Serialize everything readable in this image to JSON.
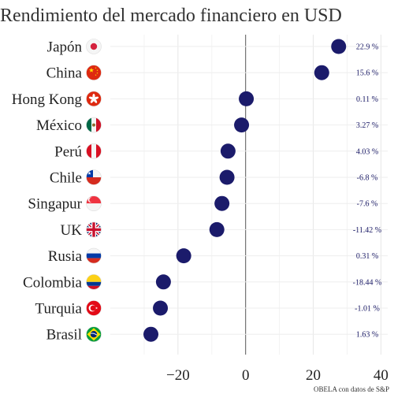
{
  "chart_data": {
    "type": "scatter",
    "title": "Rendimiento del mercado financiero en USD",
    "caption": "OBELA con datos de S&P",
    "xlabel": "",
    "ylabel": "",
    "xlim": [
      -40,
      42
    ],
    "x_ticks": [
      -20,
      0,
      20,
      40
    ],
    "x_tick_labels": [
      "−20",
      "0",
      "20",
      "40"
    ],
    "grid": true,
    "legend": "none",
    "point_color": "#1b1b6b",
    "categories": [
      "Japón",
      "China",
      "Hong Kong",
      "México",
      "Perú",
      "Chile",
      "Singapur",
      "UK",
      "Rusia",
      "Colombia",
      "Turquia",
      "Brasil"
    ],
    "flags": [
      "japan-flag-icon",
      "china-flag-icon",
      "hong-kong-flag-icon",
      "mexico-flag-icon",
      "peru-flag-icon",
      "chile-flag-icon",
      "singapore-flag-icon",
      "uk-flag-icon",
      "russia-flag-icon",
      "colombia-flag-icon",
      "turkey-flag-icon",
      "brazil-flag-icon"
    ],
    "values": [
      27.5,
      22.5,
      0.2,
      -1.2,
      -5.2,
      -5.5,
      -7,
      -8.5,
      -18.3,
      -24.3,
      -25.2,
      -28
    ],
    "value_labels": [
      "22.9 %",
      "15.6 %",
      "0.11 %",
      "3.27 %",
      "4.03 %",
      "-6.8 %",
      "-7.6 %",
      "-11.42 %",
      "0.31 %",
      "-18.44 %",
      "-1.01 %",
      "1.63 %"
    ]
  }
}
